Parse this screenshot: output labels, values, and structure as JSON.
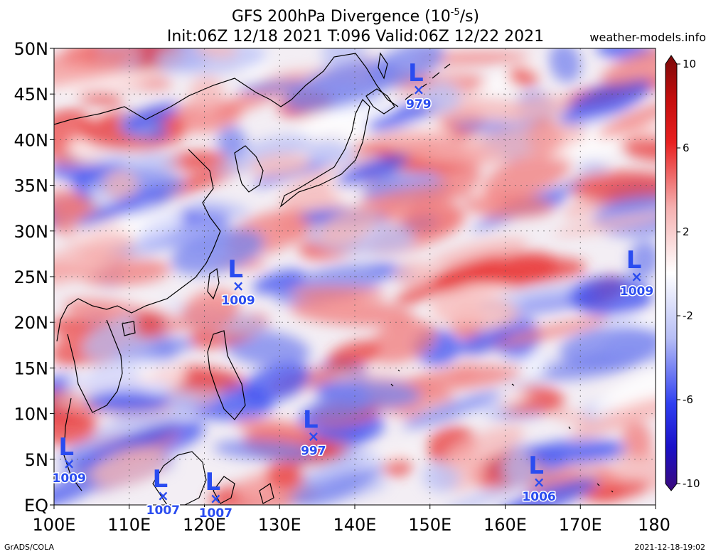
{
  "title": {
    "line1": "GFS 200hPa Divergence (10",
    "line1_sup": "-5",
    "line1_end": "/s)",
    "line2": "Init:06Z 12/18 2021 T:096 Valid:06Z 12/22 2021"
  },
  "source": "weather-models.info",
  "footer": {
    "left": "GrADS/COLA",
    "right": "2021-12-18-19:02"
  },
  "axes": {
    "x_ticks": [
      "100E",
      "110E",
      "120E",
      "130E",
      "140E",
      "150E",
      "160E",
      "170E",
      "180"
    ],
    "y_ticks": [
      "EQ",
      "5N",
      "10N",
      "15N",
      "20N",
      "25N",
      "30N",
      "35N",
      "40N",
      "45N",
      "50N"
    ],
    "lon_range": [
      100,
      180
    ],
    "lat_range": [
      0,
      50
    ]
  },
  "colorbar": {
    "labels": [
      "10",
      "6",
      "2",
      "-2",
      "-6",
      "-10"
    ],
    "colors": [
      "#3b0a7a",
      "#1a10c8",
      "#2f3ff0",
      "#6f7ef2",
      "#b6bdf5",
      "#eef0ff",
      "#ffffff",
      "#ffe6e6",
      "#f5b0b0",
      "#ee6a6a",
      "#e82020",
      "#c40d0d",
      "#7a0a0a"
    ]
  },
  "lows": [
    {
      "pressure": "979",
      "lon": 148.5,
      "lat": 45.5
    },
    {
      "pressure": "1009",
      "lon": 124.5,
      "lat": 24.0
    },
    {
      "pressure": "1009",
      "lon": 177.5,
      "lat": 25.0
    },
    {
      "pressure": "997",
      "lon": 134.5,
      "lat": 7.5
    },
    {
      "pressure": "1009",
      "lon": 102.0,
      "lat": 4.5
    },
    {
      "pressure": "1007",
      "lon": 114.5,
      "lat": 1.0
    },
    {
      "pressure": "1007",
      "lon": 121.5,
      "lat": 0.7
    },
    {
      "pressure": "1006",
      "lon": 164.5,
      "lat": 2.5
    }
  ]
}
